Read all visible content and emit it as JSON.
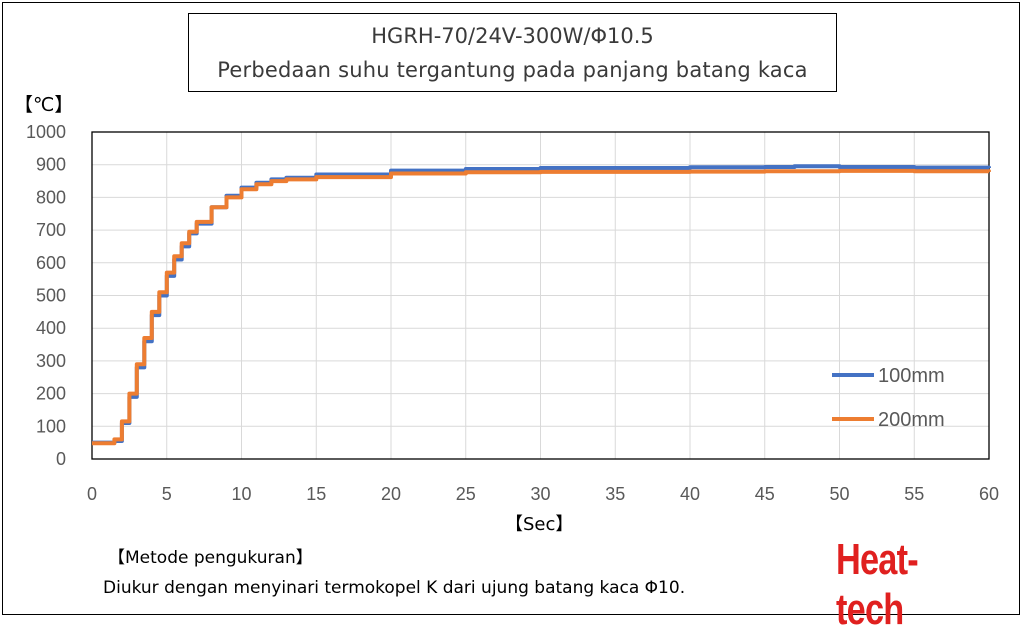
{
  "chart_data": {
    "type": "line",
    "title": "HGRH-70/24V-300W/Φ10.5",
    "subtitle": "Perbedaan suhu tergantung pada panjang batang kaca",
    "ylabel": "【℃】",
    "xlabel": "【Sec】",
    "xlim": [
      0,
      60
    ],
    "ylim": [
      0,
      1000
    ],
    "x_ticks": [
      "0",
      "5",
      "10",
      "15",
      "20",
      "25",
      "30",
      "35",
      "40",
      "45",
      "50",
      "55",
      "60"
    ],
    "y_ticks": [
      "0",
      "100",
      "200",
      "300",
      "400",
      "500",
      "600",
      "700",
      "800",
      "900",
      "1000"
    ],
    "grid": true,
    "legend_position": "right",
    "series": [
      {
        "name": "100mm",
        "color": "#4472c4",
        "points": [
          [
            0,
            50
          ],
          [
            1,
            50
          ],
          [
            1.5,
            55
          ],
          [
            2,
            110
          ],
          [
            2.5,
            190
          ],
          [
            3,
            280
          ],
          [
            3.5,
            360
          ],
          [
            4,
            440
          ],
          [
            4.5,
            500
          ],
          [
            5,
            560
          ],
          [
            5.5,
            610
          ],
          [
            6,
            650
          ],
          [
            6.5,
            690
          ],
          [
            7,
            720
          ],
          [
            8,
            770
          ],
          [
            9,
            805
          ],
          [
            10,
            830
          ],
          [
            11,
            845
          ],
          [
            12,
            855
          ],
          [
            13,
            860
          ],
          [
            15,
            870
          ],
          [
            20,
            882
          ],
          [
            25,
            887
          ],
          [
            30,
            890
          ],
          [
            35,
            890
          ],
          [
            40,
            892
          ],
          [
            45,
            893
          ],
          [
            47,
            895
          ],
          [
            50,
            893
          ],
          [
            55,
            891
          ],
          [
            60,
            890
          ]
        ]
      },
      {
        "name": "200mm",
        "color": "#ed7d31",
        "points": [
          [
            0,
            48
          ],
          [
            1,
            48
          ],
          [
            1.5,
            60
          ],
          [
            2,
            115
          ],
          [
            2.5,
            200
          ],
          [
            3,
            290
          ],
          [
            3.5,
            370
          ],
          [
            4,
            450
          ],
          [
            4.5,
            510
          ],
          [
            5,
            570
          ],
          [
            5.5,
            620
          ],
          [
            6,
            660
          ],
          [
            6.5,
            695
          ],
          [
            7,
            725
          ],
          [
            8,
            770
          ],
          [
            9,
            800
          ],
          [
            10,
            825
          ],
          [
            11,
            840
          ],
          [
            12,
            850
          ],
          [
            13,
            855
          ],
          [
            15,
            862
          ],
          [
            20,
            873
          ],
          [
            25,
            877
          ],
          [
            30,
            878
          ],
          [
            35,
            878
          ],
          [
            40,
            879
          ],
          [
            45,
            880
          ],
          [
            50,
            881
          ],
          [
            55,
            880
          ],
          [
            60,
            878
          ]
        ]
      }
    ]
  },
  "method": {
    "label": "【Metode pengukuran】",
    "text": "Diukur dengan menyinari termokopel K dari ujung batang kaca Φ10."
  },
  "logo": {
    "text": "Heat-tech"
  }
}
